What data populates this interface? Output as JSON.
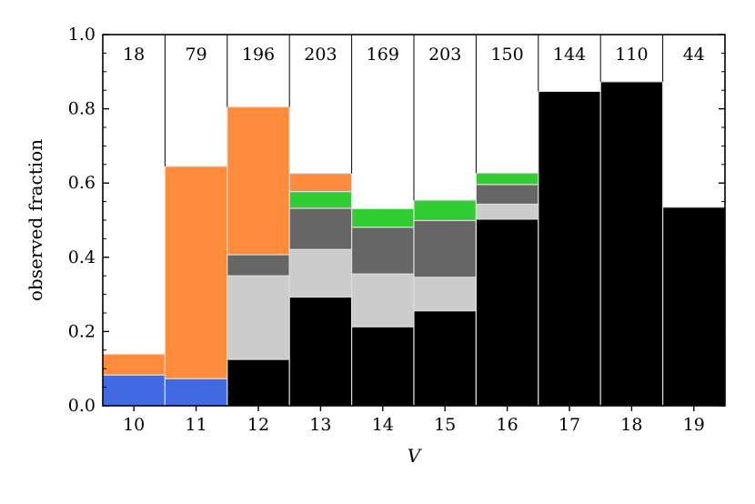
{
  "chart_data": {
    "type": "bar",
    "stacked": true,
    "title": "",
    "xlabel": "V",
    "ylabel": "observed fraction",
    "ylim": [
      0,
      1.0
    ],
    "yticks": [
      "0.0",
      "0.2",
      "0.4",
      "0.6",
      "0.8",
      "1.0"
    ],
    "categories": [
      "10",
      "11",
      "12",
      "13",
      "14",
      "15",
      "16",
      "17",
      "18",
      "19"
    ],
    "counts": [
      "18",
      "79",
      "196",
      "203",
      "169",
      "203",
      "150",
      "144",
      "110",
      "44"
    ],
    "grid": false,
    "legend": "none",
    "series": [
      {
        "color": "#000000",
        "values": [
          0,
          0,
          0.125,
          0.293,
          0.213,
          0.256,
          0.503,
          0.847,
          0.873,
          0.535
        ]
      },
      {
        "color": "#4169e1",
        "values": [
          0.083,
          0.073,
          0,
          0,
          0,
          0,
          0,
          0,
          0,
          0
        ]
      },
      {
        "color": "#cccccc",
        "values": [
          0,
          0,
          0.225,
          0.128,
          0.142,
          0.09,
          0.04,
          0,
          0,
          0
        ]
      },
      {
        "color": "#666666",
        "values": [
          0,
          0,
          0.057,
          0.111,
          0.126,
          0.153,
          0.053,
          0,
          0,
          0
        ]
      },
      {
        "color": "#32cd32",
        "values": [
          0,
          0,
          0,
          0.045,
          0.05,
          0.055,
          0.031,
          0,
          0,
          0
        ]
      },
      {
        "color": "#ff8c3c",
        "values": [
          0.056,
          0.572,
          0.398,
          0.049,
          0,
          0,
          0,
          0,
          0,
          0
        ]
      }
    ]
  }
}
